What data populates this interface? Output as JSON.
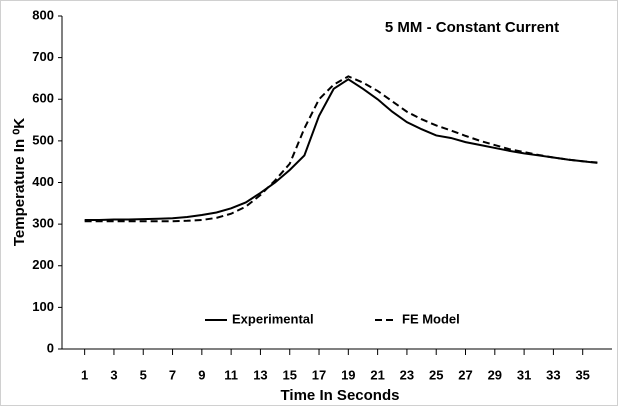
{
  "chart_data": {
    "type": "line",
    "title": "5 MM - Constant Current",
    "x_label": "Time In Seconds",
    "y_label": "Temperature In ⁰K",
    "x": [
      1,
      2,
      3,
      4,
      5,
      6,
      7,
      8,
      9,
      10,
      11,
      12,
      13,
      14,
      15,
      16,
      17,
      18,
      19,
      20,
      21,
      22,
      23,
      24,
      25,
      26,
      27,
      28,
      29,
      30,
      31,
      32,
      33,
      34,
      35,
      36
    ],
    "series": [
      {
        "name": "Experimental",
        "color": "#000000",
        "dash": "solid",
        "values": [
          310,
          310,
          311,
          311,
          312,
          313,
          314,
          317,
          322,
          328,
          338,
          352,
          375,
          400,
          430,
          465,
          560,
          625,
          648,
          625,
          600,
          570,
          545,
          528,
          513,
          507,
          497,
          490,
          483,
          476,
          470,
          465,
          460,
          455,
          451,
          447
        ]
      },
      {
        "name": "FE Model",
        "color": "#000000",
        "dash": "dashed",
        "values": [
          307,
          307,
          307,
          307,
          307,
          307,
          307,
          308,
          310,
          315,
          325,
          342,
          370,
          405,
          445,
          530,
          600,
          635,
          655,
          640,
          620,
          595,
          570,
          552,
          537,
          525,
          512,
          500,
          490,
          480,
          473,
          466,
          460,
          455,
          451,
          448
        ]
      }
    ],
    "xlim": [
      0,
      37
    ],
    "xticks": [
      1,
      3,
      5,
      7,
      9,
      11,
      13,
      15,
      17,
      19,
      21,
      23,
      25,
      27,
      29,
      31,
      33,
      35
    ],
    "ylim": [
      0,
      800
    ],
    "yticks": [
      0,
      100,
      200,
      300,
      400,
      500,
      600,
      700,
      800
    ],
    "grid": false,
    "legend": "bottom"
  }
}
